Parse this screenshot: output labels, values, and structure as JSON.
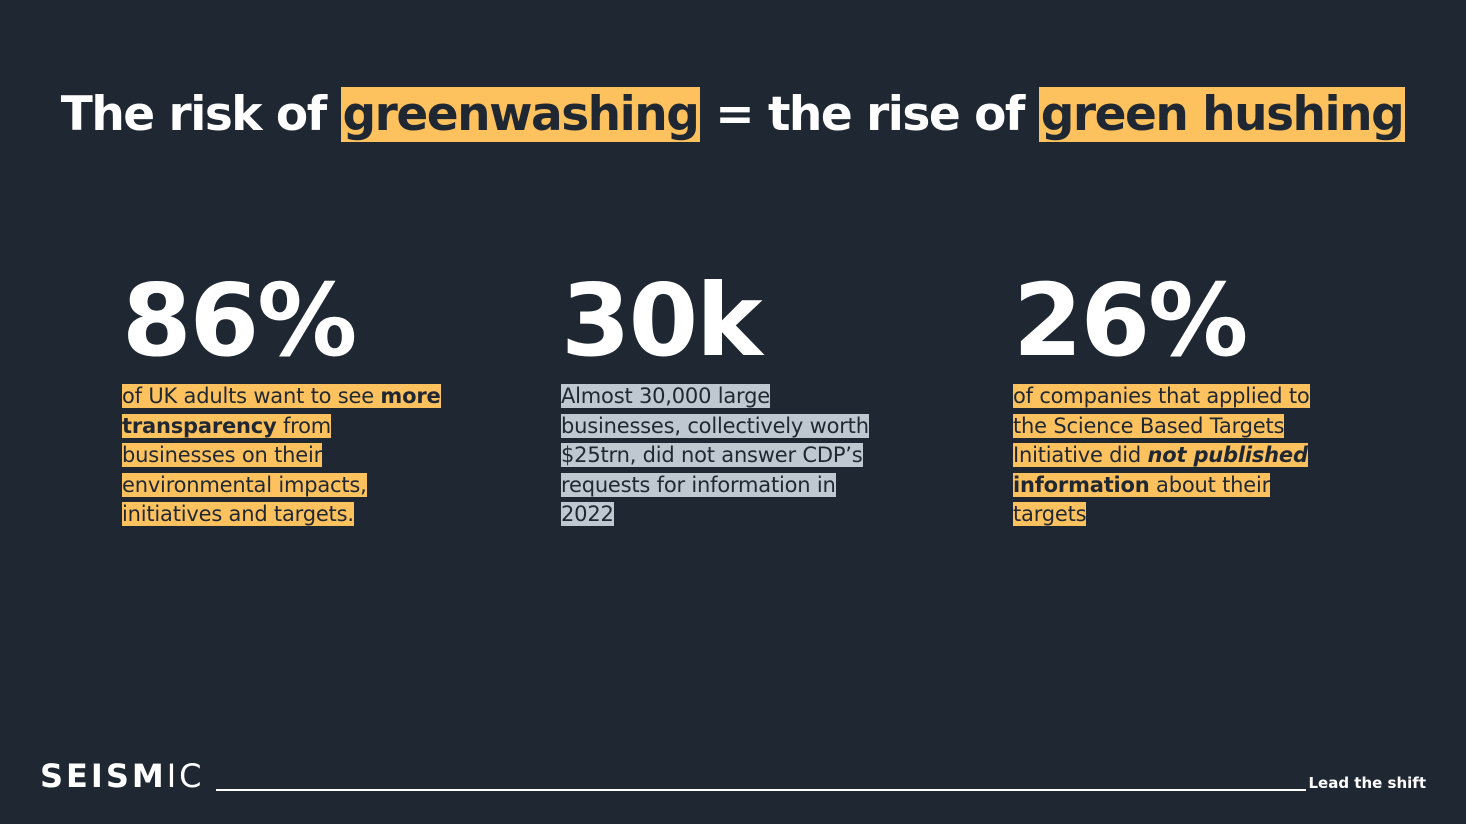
{
  "title": {
    "part1": "The risk of ",
    "highlight1": "greenwashing",
    "part2": " = the rise of ",
    "highlight2": "green hushing"
  },
  "stats": [
    {
      "value": "86%",
      "text_a": "of UK adults want to see ",
      "bold": "more transparency",
      "text_b": " from businesses on their environmental impacts, initiatives and targets."
    },
    {
      "value": "30k",
      "text": "Almost 30,000 large businesses, collectively worth $25trn, did not answer CDP’s requests for information in 2022"
    },
    {
      "value": "26%",
      "text_a": "of companies that applied to the Science Based Targets Initiative did ",
      "bold_italic": "not published",
      "bold": " information",
      "text_b": " about their targets"
    }
  ],
  "footer": {
    "logo_bold": "SEISM",
    "logo_light": "IC",
    "tagline": "Lead the shift"
  },
  "colors": {
    "background": "#1f2832",
    "highlight": "#fdc15e",
    "highlight_grey": "#bfc7d0"
  }
}
